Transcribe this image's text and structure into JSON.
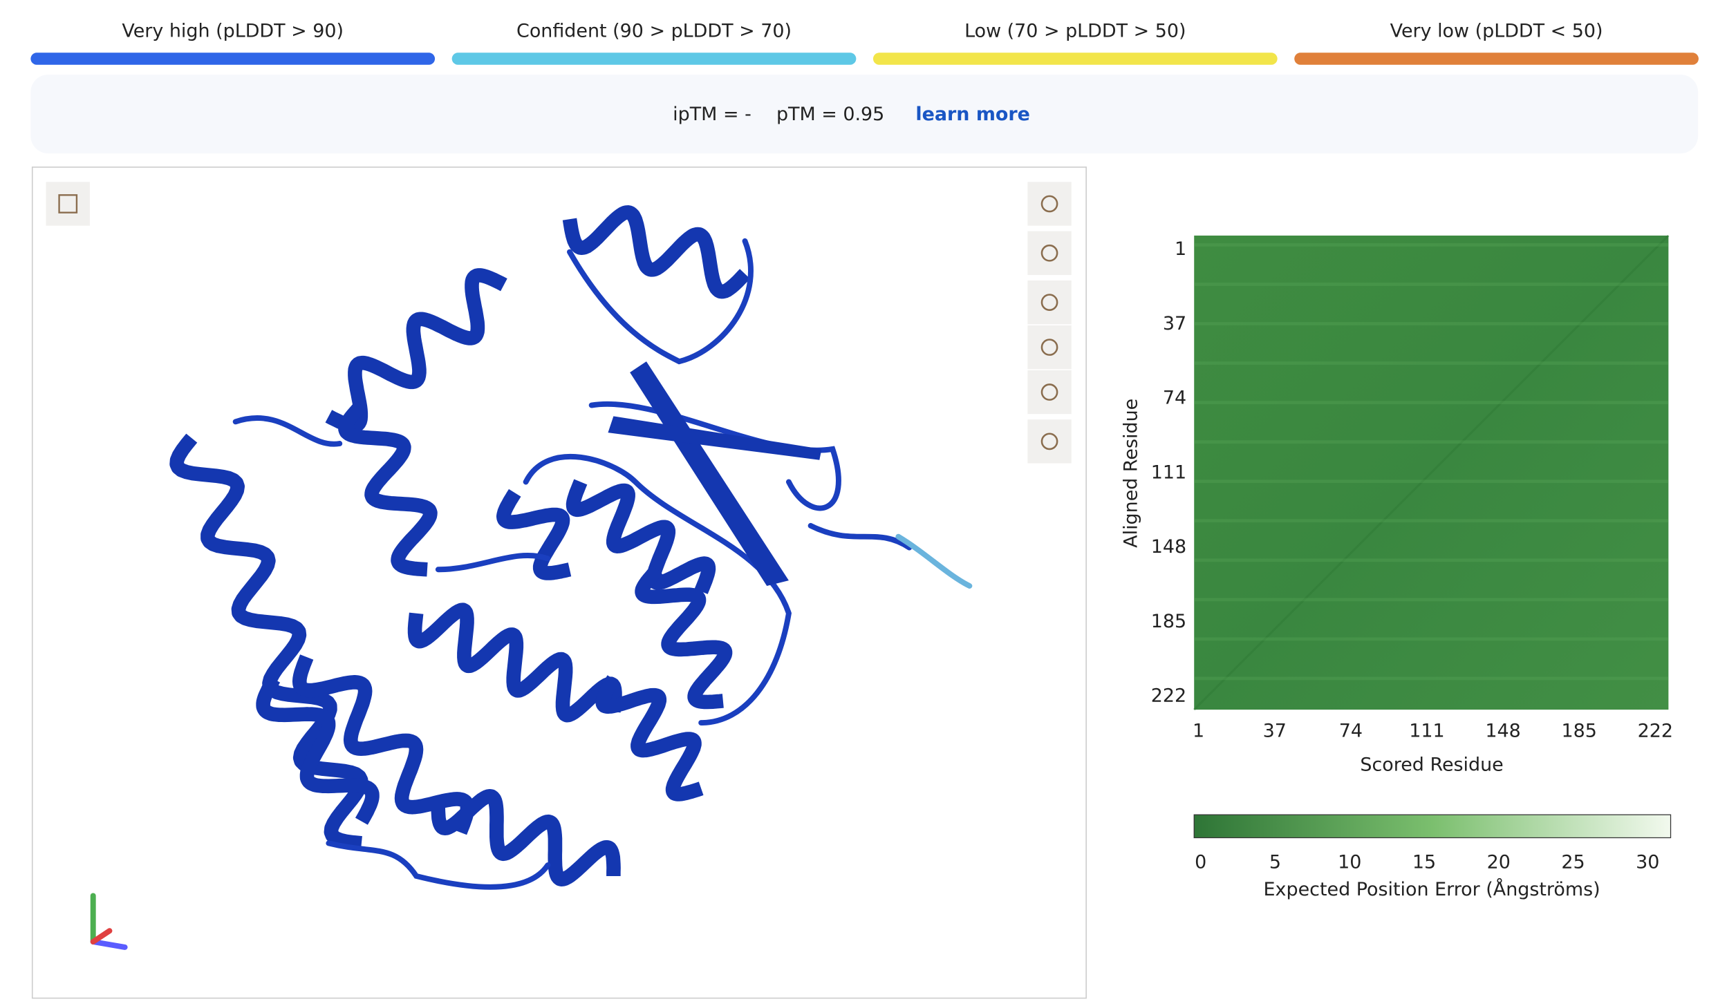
{
  "legend": [
    {
      "label": "Very high (pLDDT > 90)",
      "color": "#2f66e8"
    },
    {
      "label": "Confident (90 > pLDDT > 70)",
      "color": "#5ec8e6"
    },
    {
      "label": "Low (70 > pLDDT > 50)",
      "color": "#f2e54a"
    },
    {
      "label": "Very low (pLDDT < 50)",
      "color": "#e0803a"
    }
  ],
  "scores": {
    "iptm": "ipTM = -",
    "ptm": "pTM = 0.95",
    "link": "learn more"
  },
  "pae": {
    "y_label": "Aligned Residue",
    "x_label": "Scored Residue",
    "yticks": [
      1,
      37,
      74,
      111,
      148,
      185,
      222
    ],
    "xticks": [
      1,
      37,
      74,
      111,
      148,
      185,
      222
    ],
    "colorbar_ticks": [
      0,
      5,
      10,
      15,
      20,
      25,
      30
    ],
    "colorbar_label": "Expected Position Error (Ångströms)"
  }
}
